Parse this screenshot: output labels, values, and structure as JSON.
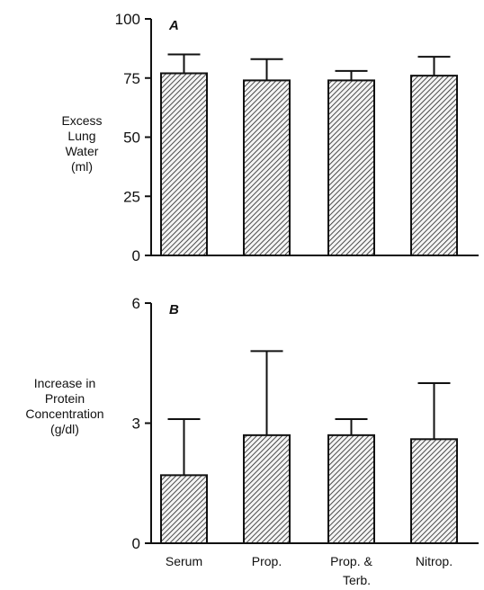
{
  "chart_data": [
    {
      "type": "bar",
      "panel_label": "A",
      "ylabel_lines": [
        "Excess",
        "Lung",
        "Water",
        "(ml)"
      ],
      "categories": [
        "Serum",
        "Prop.",
        "Prop. &",
        "Nitrop."
      ],
      "values": [
        77,
        74,
        74,
        76
      ],
      "error_upper": [
        85,
        83,
        78,
        84
      ],
      "ylim": [
        0,
        100
      ],
      "yticks": [
        0,
        25,
        50,
        75,
        100
      ],
      "show_category_labels": false,
      "grid": false
    },
    {
      "type": "bar",
      "panel_label": "B",
      "ylabel_lines": [
        "Increase in",
        "Protein",
        "Concentration",
        "(g/dl)"
      ],
      "categories": [
        "Serum",
        "Prop.",
        "Prop. &",
        "Nitrop."
      ],
      "category_sublabels": [
        "",
        "",
        "Terb.",
        ""
      ],
      "values": [
        1.7,
        2.7,
        2.7,
        2.6
      ],
      "error_upper": [
        3.1,
        4.8,
        3.1,
        4.0
      ],
      "ylim": [
        0,
        6
      ],
      "yticks": [
        0,
        3,
        6
      ],
      "show_category_labels": true,
      "grid": false
    }
  ],
  "colors": {
    "ink": "#111111",
    "bar_fill": "#f4f4f4",
    "hatch": "#222222"
  }
}
